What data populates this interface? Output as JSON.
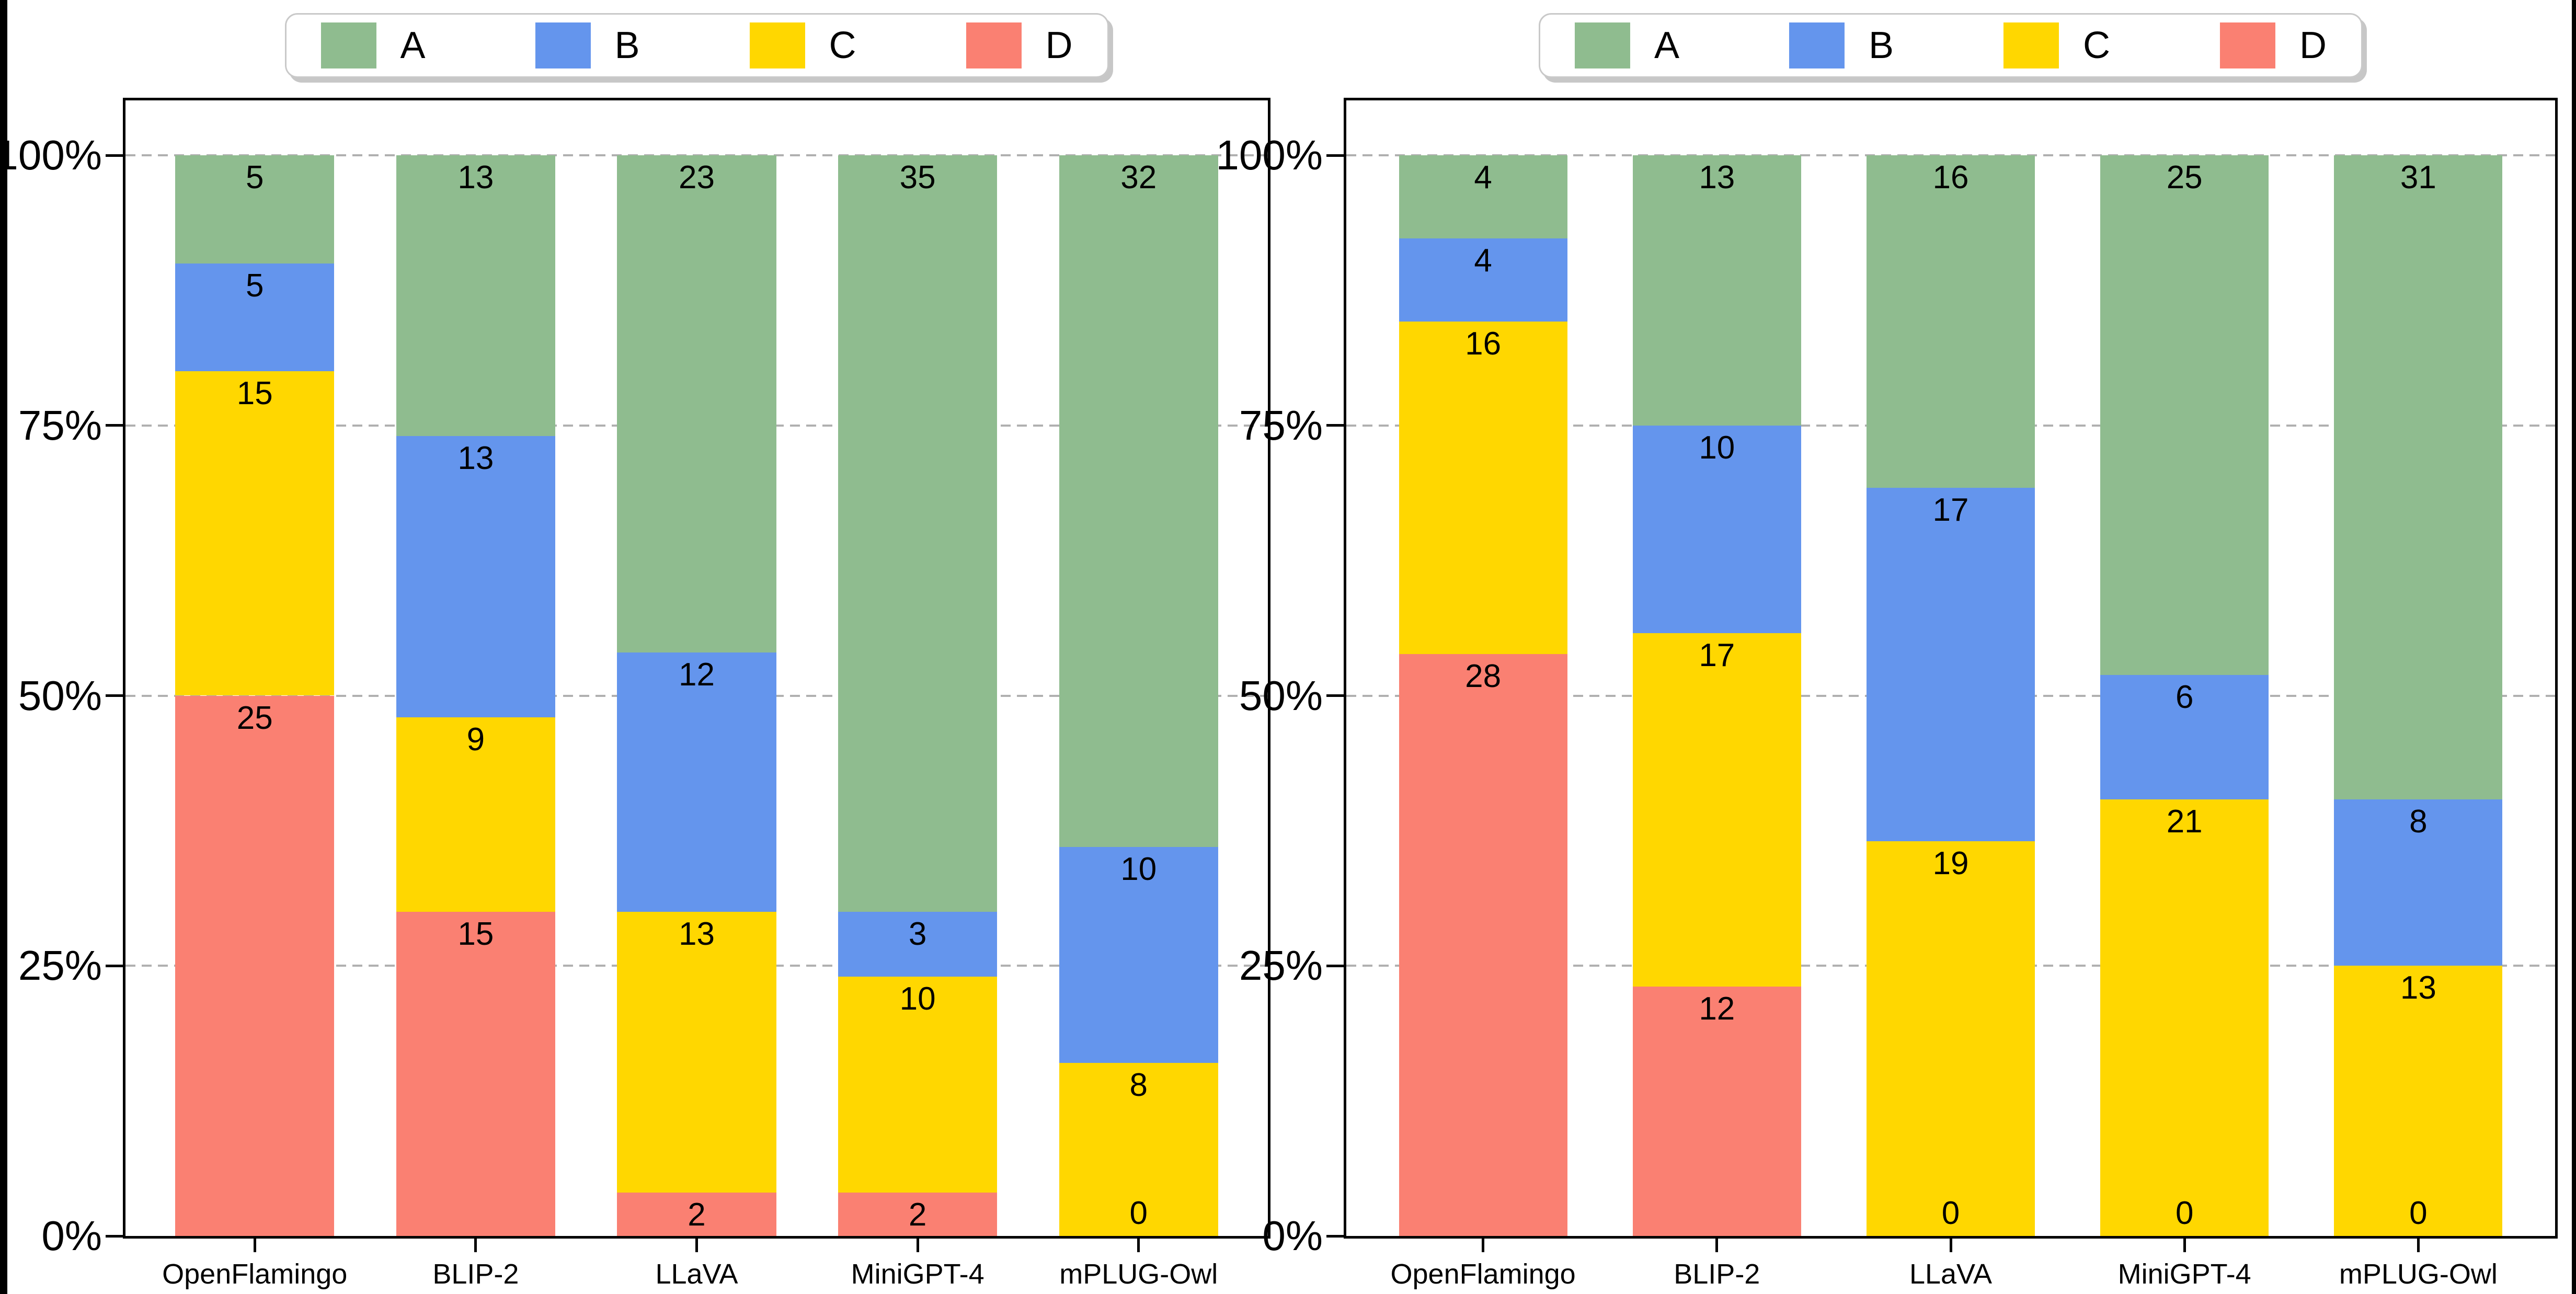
{
  "figure": {
    "background": "#ffffff",
    "frame_color": "#000000",
    "gridline_color": "#b0b0b0",
    "axis_color": "#000000"
  },
  "legend": {
    "items": [
      {
        "label": "A",
        "color": "#8fbc8f"
      },
      {
        "label": "B",
        "color": "#6495ed"
      },
      {
        "label": "C",
        "color": "#ffd700"
      },
      {
        "label": "D",
        "color": "#fa8072"
      }
    ]
  },
  "y_axis": {
    "ticks": [
      {
        "label": "0%",
        "value": 0
      },
      {
        "label": "25%",
        "value": 25
      },
      {
        "label": "50%",
        "value": 50
      },
      {
        "label": "75%",
        "value": 75
      },
      {
        "label": "100%",
        "value": 100
      }
    ],
    "gridline_values": [
      25,
      50,
      75,
      100
    ]
  },
  "chart_data": [
    {
      "type": "bar",
      "stacked": true,
      "normalized_to_percent": true,
      "title": "",
      "xlabel": "",
      "ylabel": "",
      "categories": [
        "OpenFlamingo",
        "BLIP-2",
        "LLaVA",
        "MiniGPT-4",
        "mPLUG-Owl"
      ],
      "series": [
        {
          "name": "A",
          "color": "#8fbc8f",
          "values": [
            5,
            13,
            23,
            35,
            32
          ]
        },
        {
          "name": "B",
          "color": "#6495ed",
          "values": [
            5,
            13,
            12,
            3,
            10
          ]
        },
        {
          "name": "C",
          "color": "#ffd700",
          "values": [
            15,
            9,
            13,
            10,
            8
          ]
        },
        {
          "name": "D",
          "color": "#fa8072",
          "values": [
            25,
            15,
            2,
            2,
            0
          ]
        }
      ],
      "column_totals": [
        50,
        50,
        50,
        50,
        50
      ],
      "stack_order_bottom_to_top": [
        "D",
        "C",
        "B",
        "A"
      ],
      "ytick_labels": [
        "0%",
        "25%",
        "50%",
        "75%",
        "100%"
      ],
      "ylim": [
        0,
        105
      ],
      "grid": true,
      "legend_position": "above-center"
    },
    {
      "type": "bar",
      "stacked": true,
      "normalized_to_percent": true,
      "title": "",
      "xlabel": "",
      "ylabel": "",
      "categories": [
        "OpenFlamingo",
        "BLIP-2",
        "LLaVA",
        "MiniGPT-4",
        "mPLUG-Owl"
      ],
      "series": [
        {
          "name": "A",
          "color": "#8fbc8f",
          "values": [
            4,
            13,
            16,
            25,
            31
          ]
        },
        {
          "name": "B",
          "color": "#6495ed",
          "values": [
            4,
            10,
            17,
            6,
            8
          ]
        },
        {
          "name": "C",
          "color": "#ffd700",
          "values": [
            16,
            17,
            19,
            21,
            13
          ]
        },
        {
          "name": "D",
          "color": "#fa8072",
          "values": [
            28,
            12,
            0,
            0,
            0
          ]
        }
      ],
      "column_totals": [
        52,
        52,
        52,
        52,
        52
      ],
      "stack_order_bottom_to_top": [
        "D",
        "C",
        "B",
        "A"
      ],
      "ytick_labels": [
        "0%",
        "25%",
        "50%",
        "75%",
        "100%"
      ],
      "ylim": [
        0,
        105
      ],
      "grid": true,
      "legend_position": "above-center"
    }
  ]
}
